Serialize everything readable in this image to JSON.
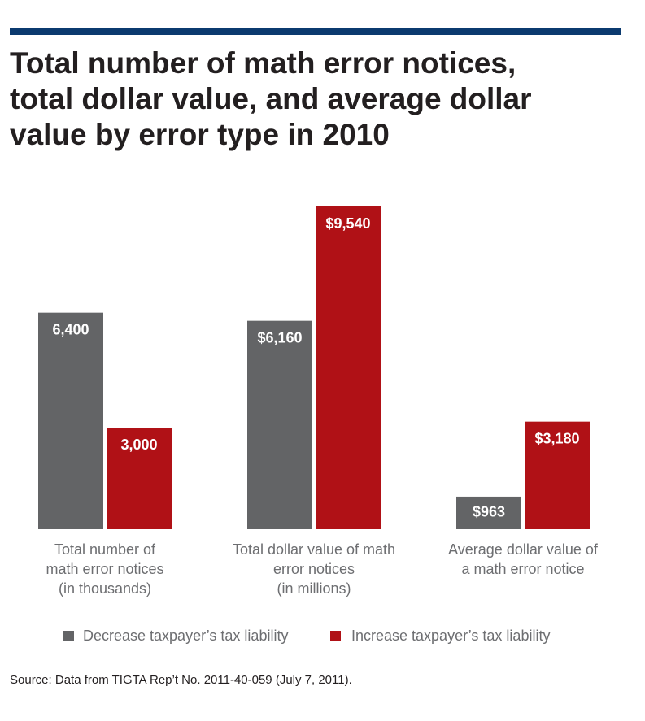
{
  "chart_data": {
    "type": "bar",
    "title": "Total number of math error notices,\ntotal dollar value, and average dollar\nvalue by error type in 2010",
    "categories": [
      "Total number of\nmath error notices\n(in thousands)",
      "Total dollar value of math\nerror notices\n(in millions)",
      "Average dollar value of\na math error notice"
    ],
    "series": [
      {
        "name": "Decrease taxpayer’s tax liability",
        "color": "#636466",
        "values": [
          6400,
          6160,
          963
        ],
        "value_labels": [
          "6,400",
          "$6,160",
          "$963"
        ]
      },
      {
        "name": "Increase taxpayer’s tax liability",
        "color": "#b01116",
        "values": [
          3000,
          9540,
          3180
        ],
        "value_labels": [
          "3,000",
          "$9,540",
          "$3,180"
        ]
      }
    ],
    "source": "Source: Data from TIGTA Rep’t No. 2011-40-059 (July 7, 2011)."
  }
}
